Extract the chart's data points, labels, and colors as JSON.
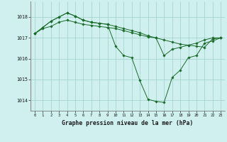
{
  "background_color": "#cff0ee",
  "plot_bg_color": "#cff0ee",
  "grid_color": "#9ecfca",
  "line_color": "#1a6b2a",
  "marker_color": "#1a6b2a",
  "xlabel": "Graphe pression niveau de la mer (hPa)",
  "ylim": [
    1013.5,
    1018.75
  ],
  "xlim": [
    -0.5,
    23.5
  ],
  "yticks": [
    1014,
    1015,
    1016,
    1017,
    1018
  ],
  "xticks": [
    0,
    1,
    2,
    3,
    4,
    5,
    6,
    7,
    8,
    9,
    10,
    11,
    12,
    13,
    14,
    15,
    16,
    17,
    18,
    19,
    20,
    21,
    22,
    23
  ],
  "series": [
    [
      1017.2,
      1017.45,
      1017.55,
      1017.75,
      1017.85,
      1017.75,
      1017.65,
      1017.6,
      1017.55,
      1017.5,
      1017.45,
      1017.35,
      1017.25,
      1017.15,
      1017.05,
      1017.0,
      1016.9,
      1016.8,
      1016.7,
      1016.65,
      1016.6,
      1016.55,
      1016.95,
      1017.0
    ],
    [
      1017.2,
      1017.5,
      1017.8,
      1018.0,
      1018.2,
      1018.05,
      1017.85,
      1017.75,
      1017.7,
      1017.65,
      1016.6,
      1016.15,
      1016.05,
      1014.95,
      1014.05,
      1013.95,
      1013.9,
      1015.1,
      1015.45,
      1016.05,
      1016.15,
      1016.75,
      1016.85,
      1017.0
    ],
    [
      1017.2,
      1017.5,
      1017.8,
      1018.0,
      1018.2,
      1018.05,
      1017.85,
      1017.75,
      1017.7,
      1017.65,
      1017.55,
      1017.45,
      1017.35,
      1017.25,
      1017.1,
      1017.0,
      1016.15,
      1016.45,
      1016.55,
      1016.65,
      1016.75,
      1016.9,
      1017.0,
      1017.0
    ]
  ]
}
